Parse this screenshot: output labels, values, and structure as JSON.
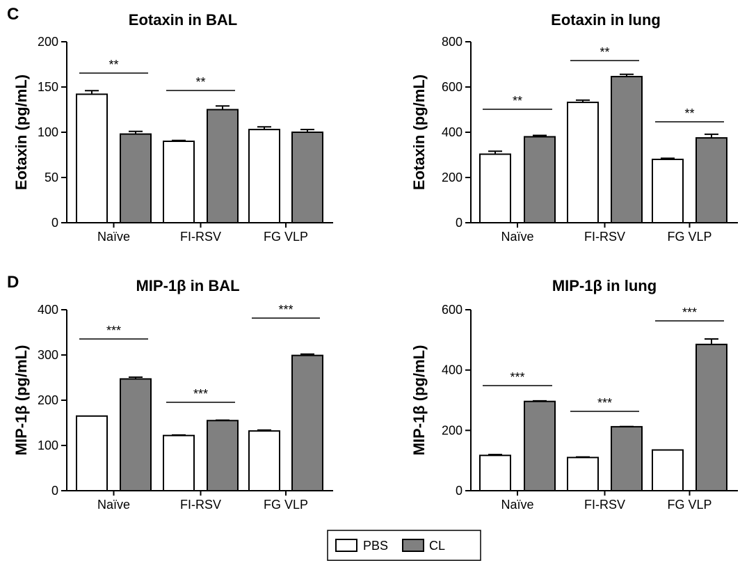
{
  "legend": {
    "items": [
      {
        "name": "PBS",
        "color": "#ffffff"
      },
      {
        "name": "CL",
        "color": "#808080"
      }
    ]
  },
  "chart_data": [
    {
      "type": "bar",
      "panel": "C",
      "title": "Eotaxin in BAL",
      "ylabel": "Eotaxin (pg/mL)",
      "ylim": [
        0,
        200
      ],
      "yticks": [
        0,
        50,
        100,
        150,
        200
      ],
      "categories": [
        "Naïve",
        "FI-RSV",
        "FG VLP"
      ],
      "series": [
        {
          "name": "PBS",
          "values": [
            142,
            90,
            103
          ],
          "errors": [
            4,
            1,
            3
          ]
        },
        {
          "name": "CL",
          "values": [
            98,
            125,
            100
          ],
          "errors": [
            3,
            4,
            3
          ]
        }
      ],
      "significance": [
        "**",
        "**",
        ""
      ],
      "grid": false
    },
    {
      "type": "bar",
      "panel": "",
      "title": "Eotaxin in lung",
      "ylabel": "Eotaxin (pg/mL)",
      "ylim": [
        0,
        800
      ],
      "yticks": [
        0,
        200,
        400,
        600,
        800
      ],
      "categories": [
        "Naïve",
        "FI-RSV",
        "FG VLP"
      ],
      "series": [
        {
          "name": "PBS",
          "values": [
            303,
            532,
            280
          ],
          "errors": [
            13,
            10,
            5
          ]
        },
        {
          "name": "CL",
          "values": [
            380,
            646,
            375
          ],
          "errors": [
            6,
            10,
            16
          ]
        }
      ],
      "significance": [
        "**",
        "**",
        "**"
      ],
      "grid": false
    },
    {
      "type": "bar",
      "panel": "D",
      "title": "MIP-1β in BAL",
      "ylabel": "MIP-1β (pg/mL)",
      "ylim": [
        0,
        400
      ],
      "yticks": [
        0,
        100,
        200,
        300,
        400
      ],
      "categories": [
        "Naïve",
        "FI-RSV",
        "FG VLP"
      ],
      "series": [
        {
          "name": "PBS",
          "values": [
            165,
            122,
            132
          ],
          "errors": [
            0,
            1,
            2
          ]
        },
        {
          "name": "CL",
          "values": [
            247,
            155,
            299
          ],
          "errors": [
            4,
            1,
            3
          ]
        }
      ],
      "significance": [
        "***",
        "***",
        "***"
      ],
      "grid": false
    },
    {
      "type": "bar",
      "panel": "",
      "title": "MIP-1β in lung",
      "ylabel": "MIP-1β (pg/mL)",
      "ylim": [
        0,
        600
      ],
      "yticks": [
        0,
        200,
        400,
        600
      ],
      "categories": [
        "Naïve",
        "FI-RSV",
        "FG VLP"
      ],
      "series": [
        {
          "name": "PBS",
          "values": [
            117,
            110,
            135
          ],
          "errors": [
            3,
            2,
            0
          ]
        },
        {
          "name": "CL",
          "values": [
            296,
            212,
            485
          ],
          "errors": [
            2,
            1,
            18
          ]
        }
      ],
      "significance": [
        "***",
        "***",
        "***"
      ],
      "grid": false
    }
  ]
}
